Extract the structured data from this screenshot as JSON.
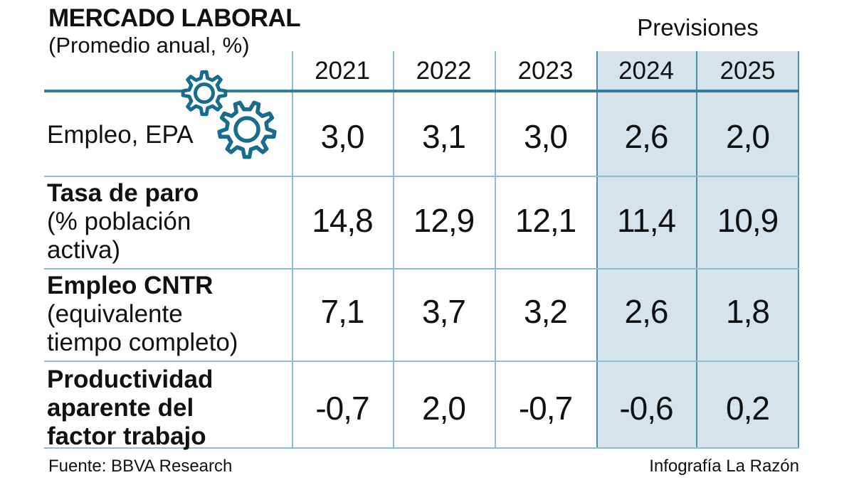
{
  "header": {
    "title": "MERCADO LABORAL",
    "subtitle": "(Promedio anual, %)",
    "forecast_label": "Previsiones"
  },
  "table": {
    "years": [
      "2021",
      "2022",
      "2023",
      "2024",
      "2025"
    ],
    "rows": [
      {
        "label_lines": [
          "Empleo, EPA"
        ],
        "values": [
          "3,0",
          "3,1",
          "3,0",
          "2,6",
          "2,0"
        ]
      },
      {
        "label_lines": [
          "Tasa de paro",
          "(% población",
          "activa)"
        ],
        "values": [
          "14,8",
          "12,9",
          "12,1",
          "11,4",
          "10,9"
        ]
      },
      {
        "label_lines": [
          "Empleo CNTR",
          "(equivalente",
          "tiempo completo)"
        ],
        "values": [
          "7,1",
          "3,7",
          "3,2",
          "2,6",
          "1,8"
        ]
      },
      {
        "label_lines": [
          "Productividad",
          "aparente del",
          "factor trabajo"
        ],
        "values": [
          "-0,7",
          "2,0",
          "-0,7",
          "-0,6",
          "0,2"
        ]
      }
    ]
  },
  "footer": {
    "source": "Fuente: BBVA Research",
    "credit": "Infografía La Razón"
  },
  "icons": {
    "gears": "two overlapping outlined gear wheels"
  },
  "colors": {
    "accent_rule": "#2e7ea0",
    "grid_light": "#8ebdd0",
    "grid_dark": "#4d8fad",
    "forecast_bg": "#d6e3eb",
    "gear_teal": "#186d8f",
    "text": "#111111"
  },
  "chart_data": {
    "type": "table",
    "title": "MERCADO LABORAL",
    "subtitle": "(Promedio anual, %)",
    "columns": [
      "2021",
      "2022",
      "2023",
      "2024",
      "2025"
    ],
    "forecast_columns": [
      "2024",
      "2025"
    ],
    "forecast_label": "Previsiones",
    "rows": [
      {
        "indicator": "Empleo, EPA",
        "values": [
          3.0,
          3.1,
          3.0,
          2.6,
          2.0
        ]
      },
      {
        "indicator": "Tasa de paro (% población activa)",
        "values": [
          14.8,
          12.9,
          12.1,
          11.4,
          10.9
        ]
      },
      {
        "indicator": "Empleo CNTR (equivalente tiempo completo)",
        "values": [
          7.1,
          3.7,
          3.2,
          2.6,
          1.8
        ]
      },
      {
        "indicator": "Productividad aparente del factor trabajo",
        "values": [
          -0.7,
          2.0,
          -0.7,
          -0.6,
          0.2
        ]
      }
    ],
    "source": "BBVA Research",
    "credit": "Infografía La Razón"
  }
}
